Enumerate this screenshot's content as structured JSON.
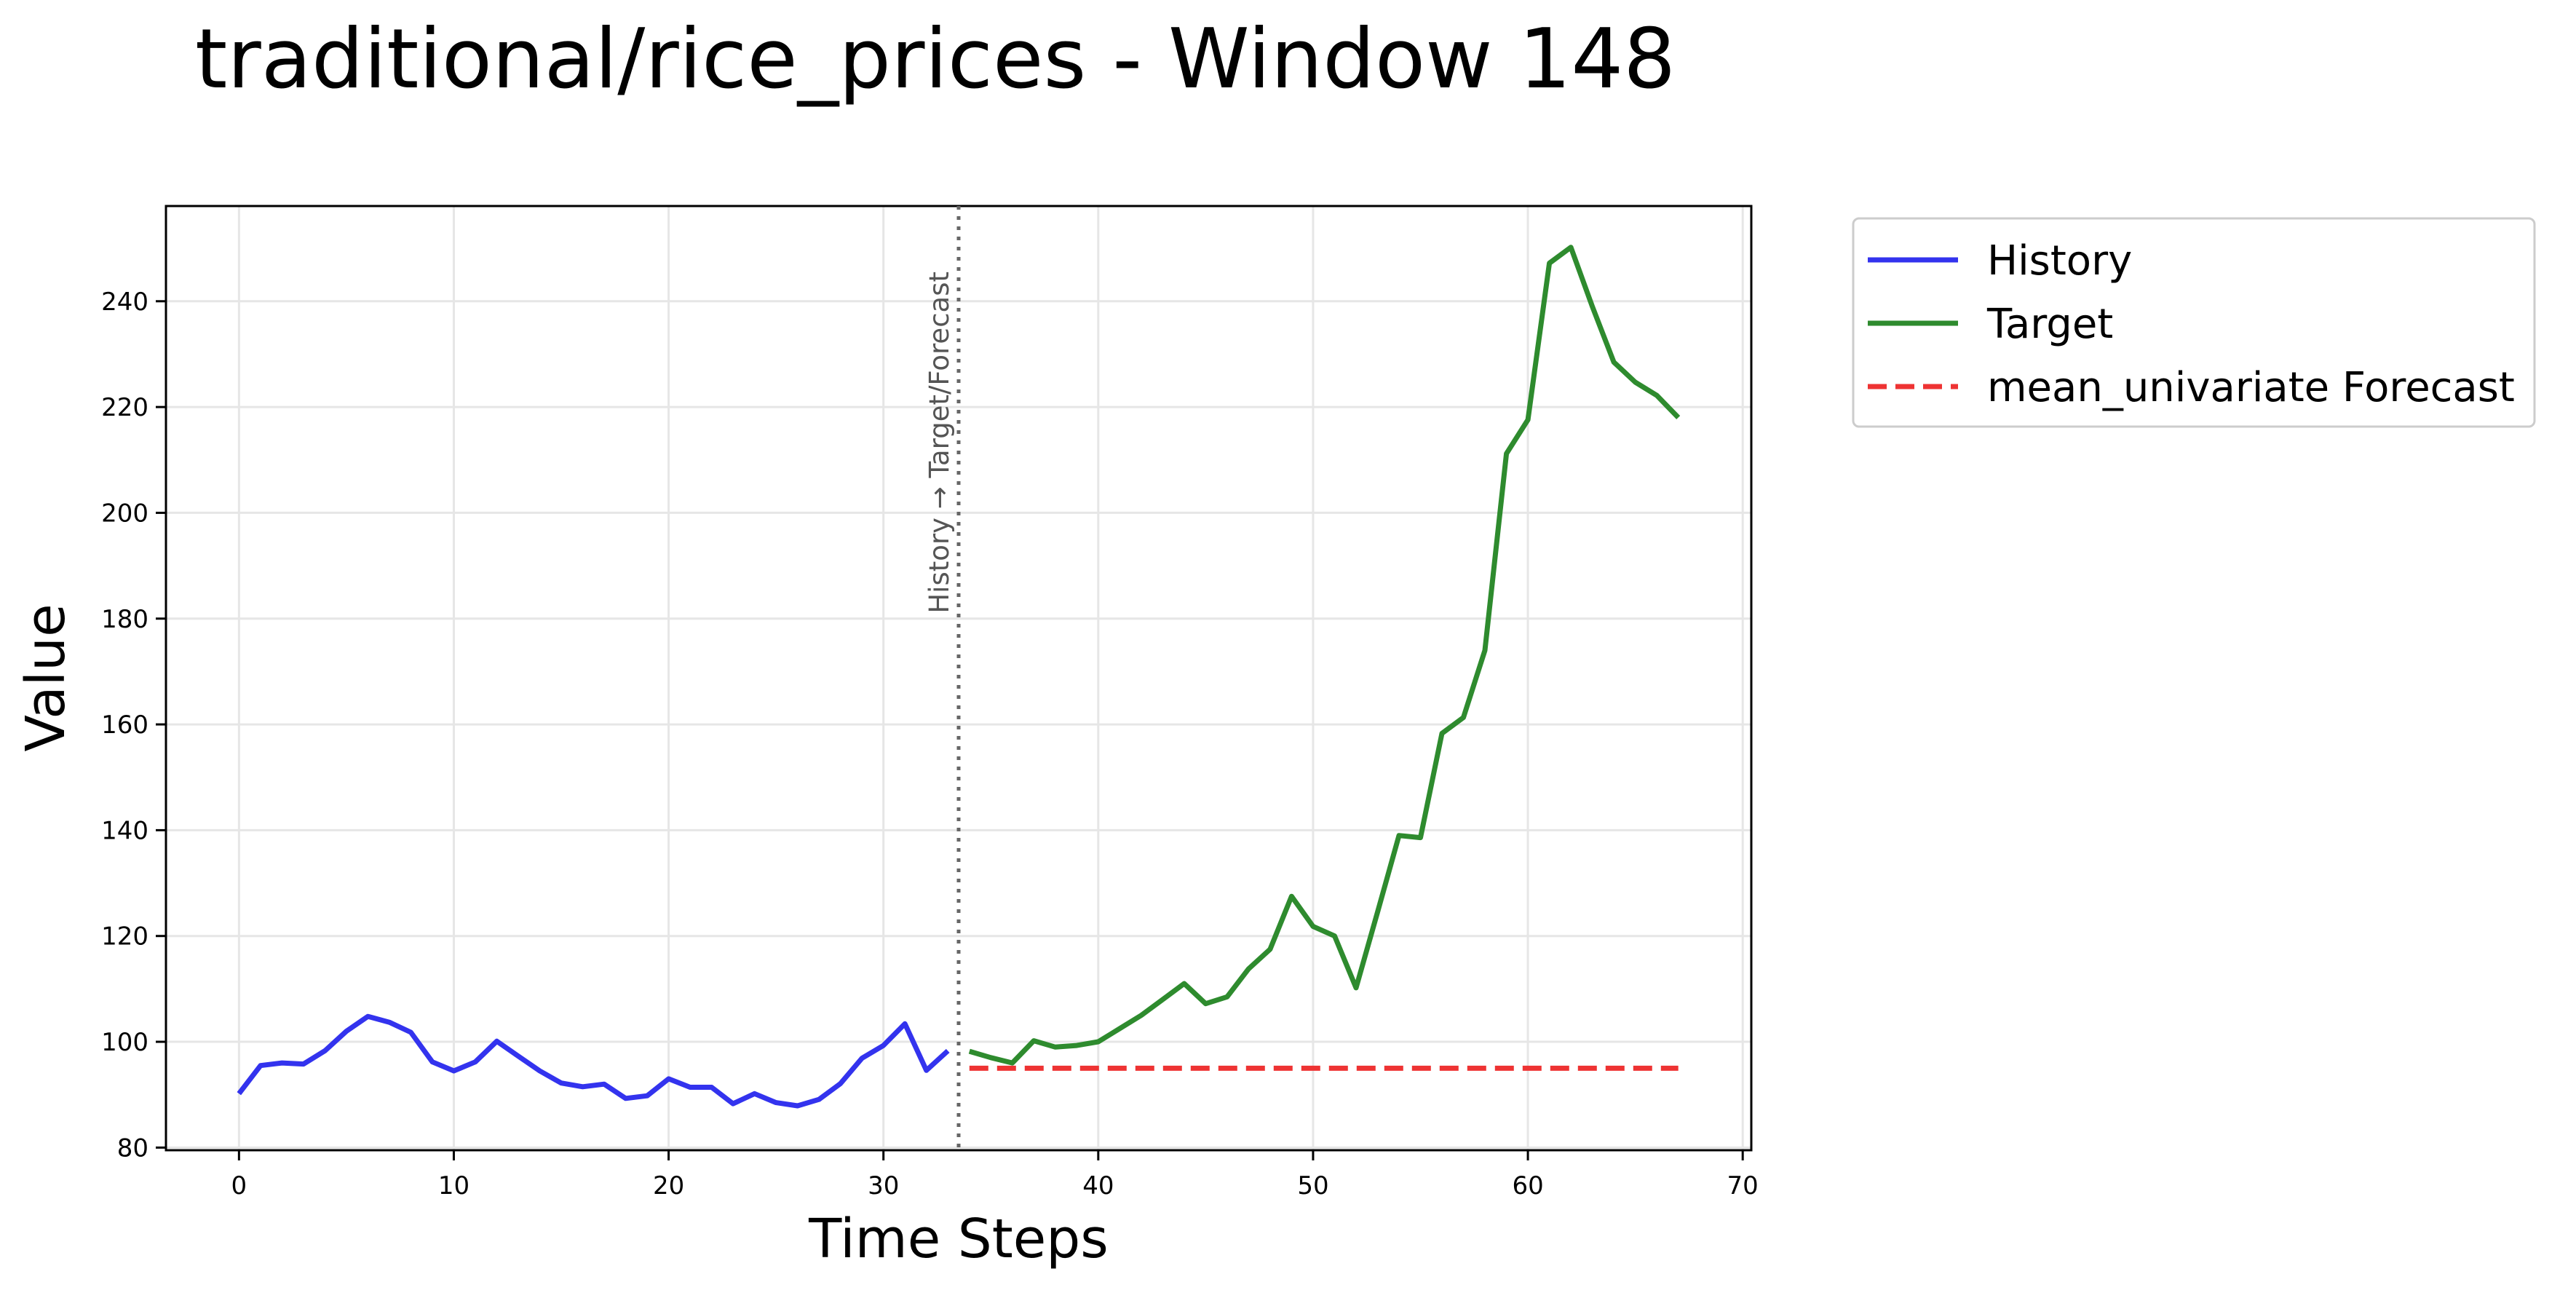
{
  "chart_data": {
    "type": "line",
    "title": "traditional/rice_prices - Window 148",
    "xlabel": "Time Steps",
    "ylabel": "Value",
    "xlim": [
      -3.4,
      70.4
    ],
    "ylim": [
      79.5,
      258
    ],
    "xticks": [
      0,
      10,
      20,
      30,
      40,
      50,
      60,
      70
    ],
    "yticks": [
      80,
      100,
      120,
      140,
      160,
      180,
      200,
      220,
      240
    ],
    "grid": true,
    "legend_position": "outside-top-right",
    "vertical_marker": {
      "x": 33.5,
      "label": "History → Target/Forecast"
    },
    "series": [
      {
        "name": "History",
        "color": "#3333ee",
        "style": "solid",
        "x": [
          0,
          1,
          2,
          3,
          4,
          5,
          6,
          7,
          8,
          9,
          10,
          11,
          12,
          13,
          14,
          15,
          16,
          17,
          18,
          19,
          20,
          21,
          22,
          23,
          24,
          25,
          26,
          27,
          28,
          29,
          30,
          31,
          32,
          33
        ],
        "y": [
          90.2,
          95.5,
          96.0,
          95.8,
          98.3,
          102.0,
          104.8,
          103.7,
          101.8,
          96.2,
          94.5,
          96.2,
          100.1,
          97.3,
          94.5,
          92.2,
          91.5,
          92.0,
          89.3,
          89.8,
          93.0,
          91.4,
          91.4,
          88.3,
          90.2,
          88.5,
          87.9,
          89.1,
          92.1,
          96.9,
          99.3,
          103.4,
          94.6,
          98.3
        ]
      },
      {
        "name": "Target",
        "color": "#2e8b2e",
        "style": "solid",
        "x": [
          34,
          35,
          36,
          37,
          38,
          39,
          40,
          41,
          42,
          43,
          44,
          45,
          46,
          47,
          48,
          49,
          50,
          51,
          52,
          53,
          54,
          55,
          56,
          57,
          58,
          59,
          60,
          61,
          62,
          63,
          64,
          65,
          66,
          67
        ],
        "y": [
          98.2,
          97.0,
          96.0,
          100.2,
          99.0,
          99.3,
          100.0,
          102.5,
          105.0,
          108.0,
          111.0,
          107.2,
          108.5,
          113.8,
          117.5,
          127.5,
          121.8,
          120.0,
          110.2,
          124.5,
          139.0,
          138.6,
          158.3,
          161.3,
          174.0,
          211.2,
          217.6,
          247.2,
          250.2,
          239.0,
          228.5,
          224.7,
          222.2,
          218.0
        ]
      },
      {
        "name": "mean_univariate Forecast",
        "color": "#ee3333",
        "style": "dashed",
        "x": [
          34,
          67
        ],
        "y": [
          95.0,
          95.0
        ]
      }
    ]
  }
}
